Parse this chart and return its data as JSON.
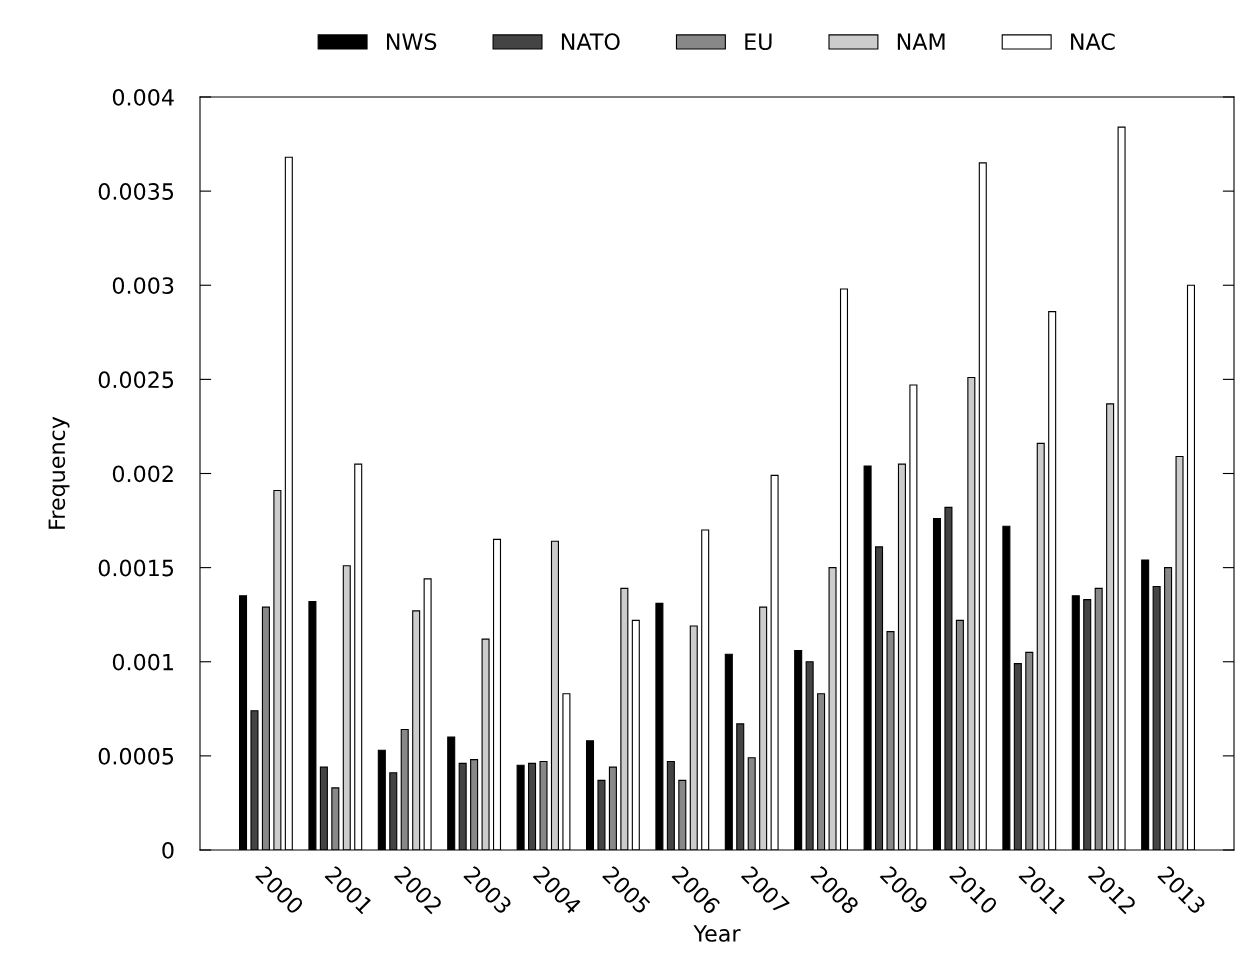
{
  "chart_data": {
    "type": "bar",
    "xlabel": "Year",
    "ylabel": "Frequency",
    "categories": [
      "2000",
      "2001",
      "2002",
      "2003",
      "2004",
      "2005",
      "2006",
      "2007",
      "2008",
      "2009",
      "2010",
      "2011",
      "2012",
      "2013"
    ],
    "series": [
      {
        "name": "NWS",
        "color": "#000000",
        "values": [
          0.00135,
          0.00132,
          0.00053,
          0.0006,
          0.00045,
          0.00058,
          0.00131,
          0.00104,
          0.00106,
          0.00204,
          0.00176,
          0.00172,
          0.00135,
          0.00154
        ]
      },
      {
        "name": "NATO",
        "color": "#444444",
        "values": [
          0.00074,
          0.00044,
          0.00041,
          0.00046,
          0.00046,
          0.00037,
          0.00047,
          0.00067,
          0.001,
          0.00161,
          0.00182,
          0.00099,
          0.00133,
          0.0014
        ]
      },
      {
        "name": "EU",
        "color": "#888888",
        "values": [
          0.00129,
          0.00033,
          0.00064,
          0.00048,
          0.00047,
          0.00044,
          0.00037,
          0.00049,
          0.00083,
          0.00116,
          0.00122,
          0.00105,
          0.00139,
          0.0015
        ]
      },
      {
        "name": "NAM",
        "color": "#cccccc",
        "values": [
          0.00191,
          0.00151,
          0.00127,
          0.00112,
          0.00164,
          0.00139,
          0.00119,
          0.00129,
          0.0015,
          0.00205,
          0.00251,
          0.00216,
          0.00237,
          0.00209
        ]
      },
      {
        "name": "NAC",
        "color": "#ffffff",
        "values": [
          0.00368,
          0.00205,
          0.00144,
          0.00165,
          0.00083,
          0.00122,
          0.0017,
          0.00199,
          0.00298,
          0.00247,
          0.00365,
          0.00286,
          0.00384,
          0.003
        ]
      }
    ],
    "ylim": [
      0,
      0.004
    ],
    "yticks": [
      0,
      0.0005,
      0.001,
      0.0015,
      0.002,
      0.0025,
      0.003,
      0.0035,
      0.004
    ],
    "legend": "top",
    "grid": false
  }
}
